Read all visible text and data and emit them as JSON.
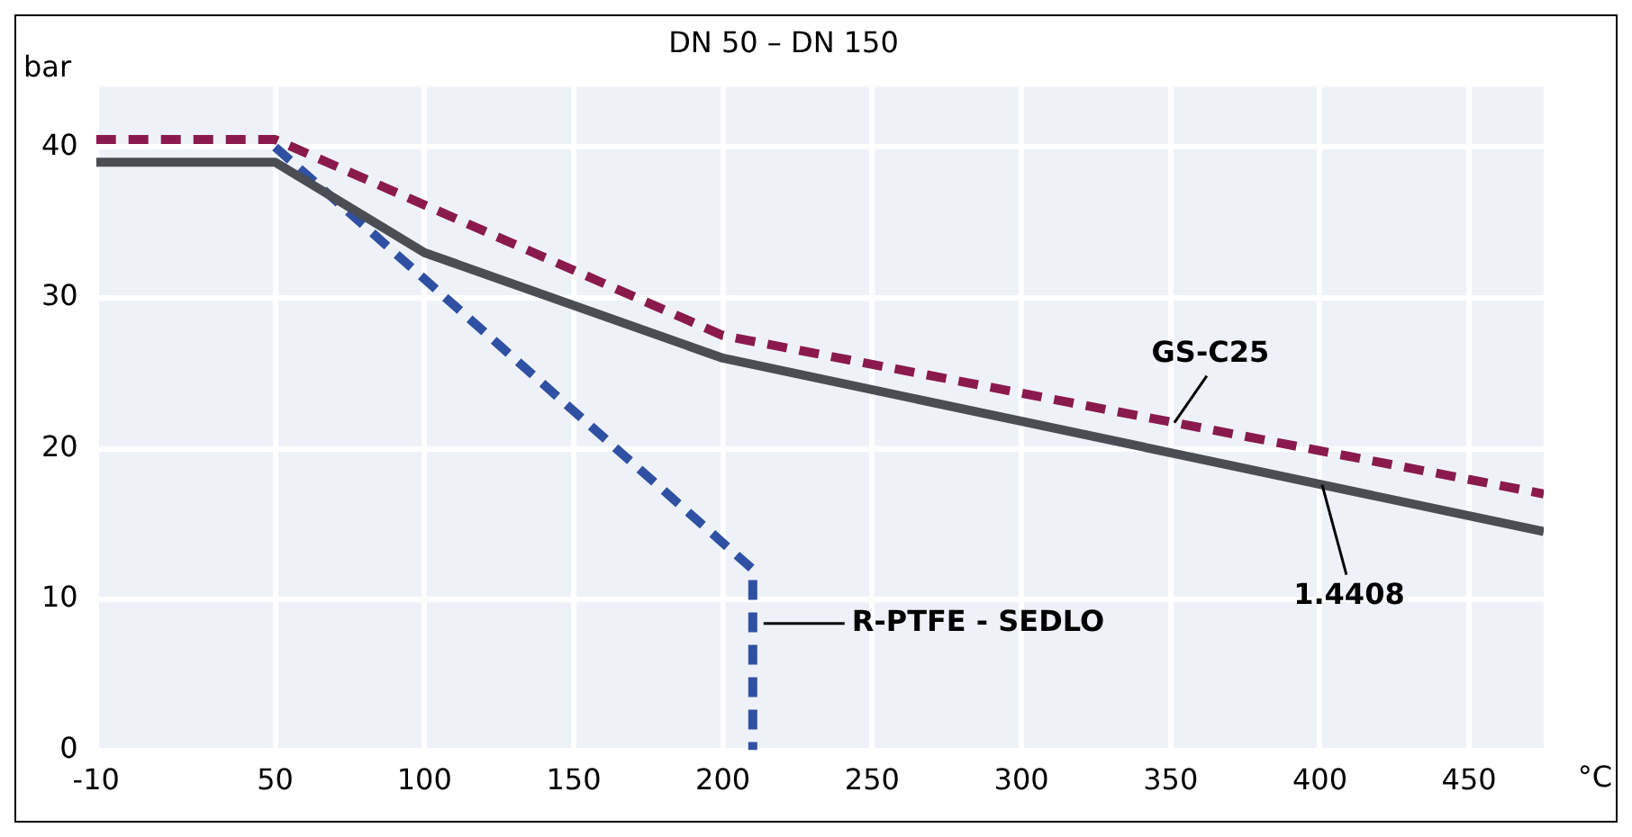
{
  "chart_data": {
    "type": "line",
    "title": "DN 50 – DN 150",
    "ylabel": "bar",
    "xlabel": "°C",
    "series": [
      {
        "name": "GS-C25",
        "color": "#8b1a4c",
        "line_style": "dashed",
        "x": [
          -10,
          50,
          200,
          475
        ],
        "values": [
          40.5,
          40.5,
          27.5,
          17
        ]
      },
      {
        "name": "1.4408",
        "color": "#4a4d54",
        "line_style": "solid",
        "x": [
          -10,
          50,
          100,
          200,
          475
        ],
        "values": [
          39,
          39,
          33,
          26,
          14.5
        ]
      },
      {
        "name": "R-PTFE - SEDLO",
        "color": "#2f50a3",
        "line_style": "dashed",
        "x": [
          50,
          210,
          210
        ],
        "values": [
          40,
          12,
          0
        ]
      }
    ],
    "xlim": [
      -10,
      475
    ],
    "xticks": [
      -10,
      50,
      100,
      150,
      200,
      250,
      300,
      350,
      400,
      450
    ],
    "ylim": [
      0,
      44
    ],
    "yticks": [
      0,
      10,
      20,
      30,
      40
    ],
    "grid": true,
    "legend": false,
    "marker": "none"
  }
}
